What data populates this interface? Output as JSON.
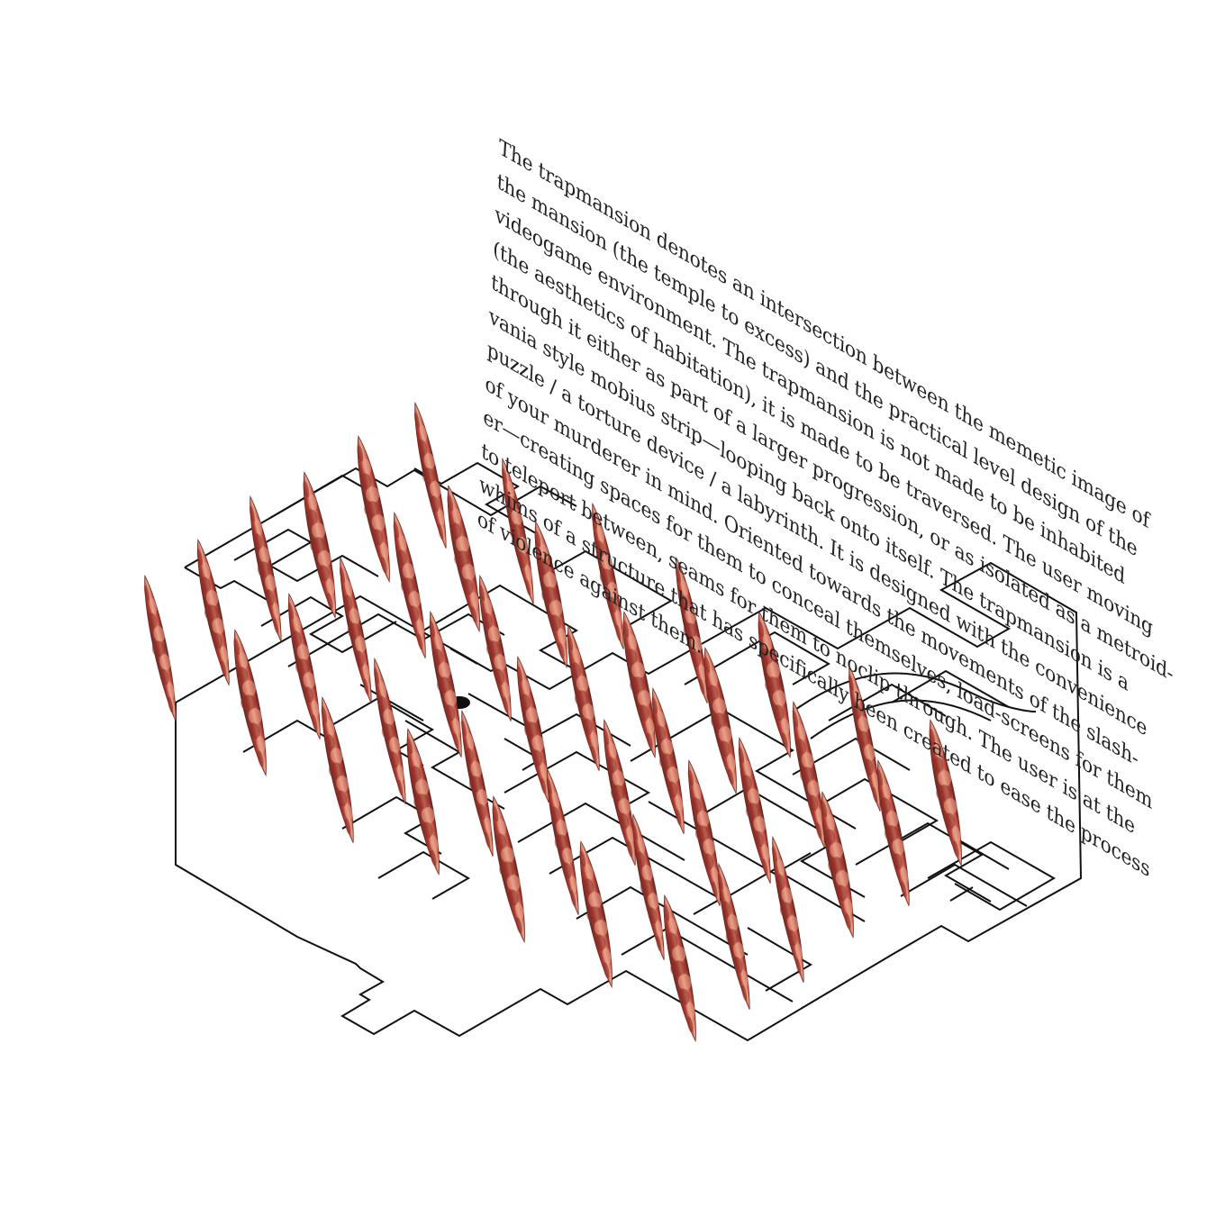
{
  "text_block": {
    "lines": [
      "The trapmansion denotes an intersection between the memetic image of",
      "the mansion (the temple to excess) and the practical level design of the",
      "videogame environment. The trapmansion is not made to be inhabited",
      "(the aesthetics of habitation), it is made to be traversed. The user moving",
      "through it either as part of a larger progression, or as isolated as a metroid-",
      "vania style mobius strip—looping back onto itself. The trapmansion is a",
      "puzzle / a torture device / a labyrinth. It is designed with the convenience",
      "of your murderer in mind. Oriented towards the movements of the slash-",
      "er—creating spaces for them to conceal themselves, load-screens for them",
      "to teleport between, seams for them to noclip through. The user is at the",
      "whims of a structure that has specifically been created to ease the process",
      "of violence against them."
    ]
  },
  "colors": {
    "background": "#ffffff",
    "plan_lines": "#111111",
    "text": "#222222",
    "spike_dark": "#5a2a24",
    "spike_mid": "#b23a30",
    "spike_light": "#e8a38a"
  },
  "figures": {
    "floor_plan": "isometric-maze-floor-plan",
    "spikes": "flesh-spike-icon"
  }
}
